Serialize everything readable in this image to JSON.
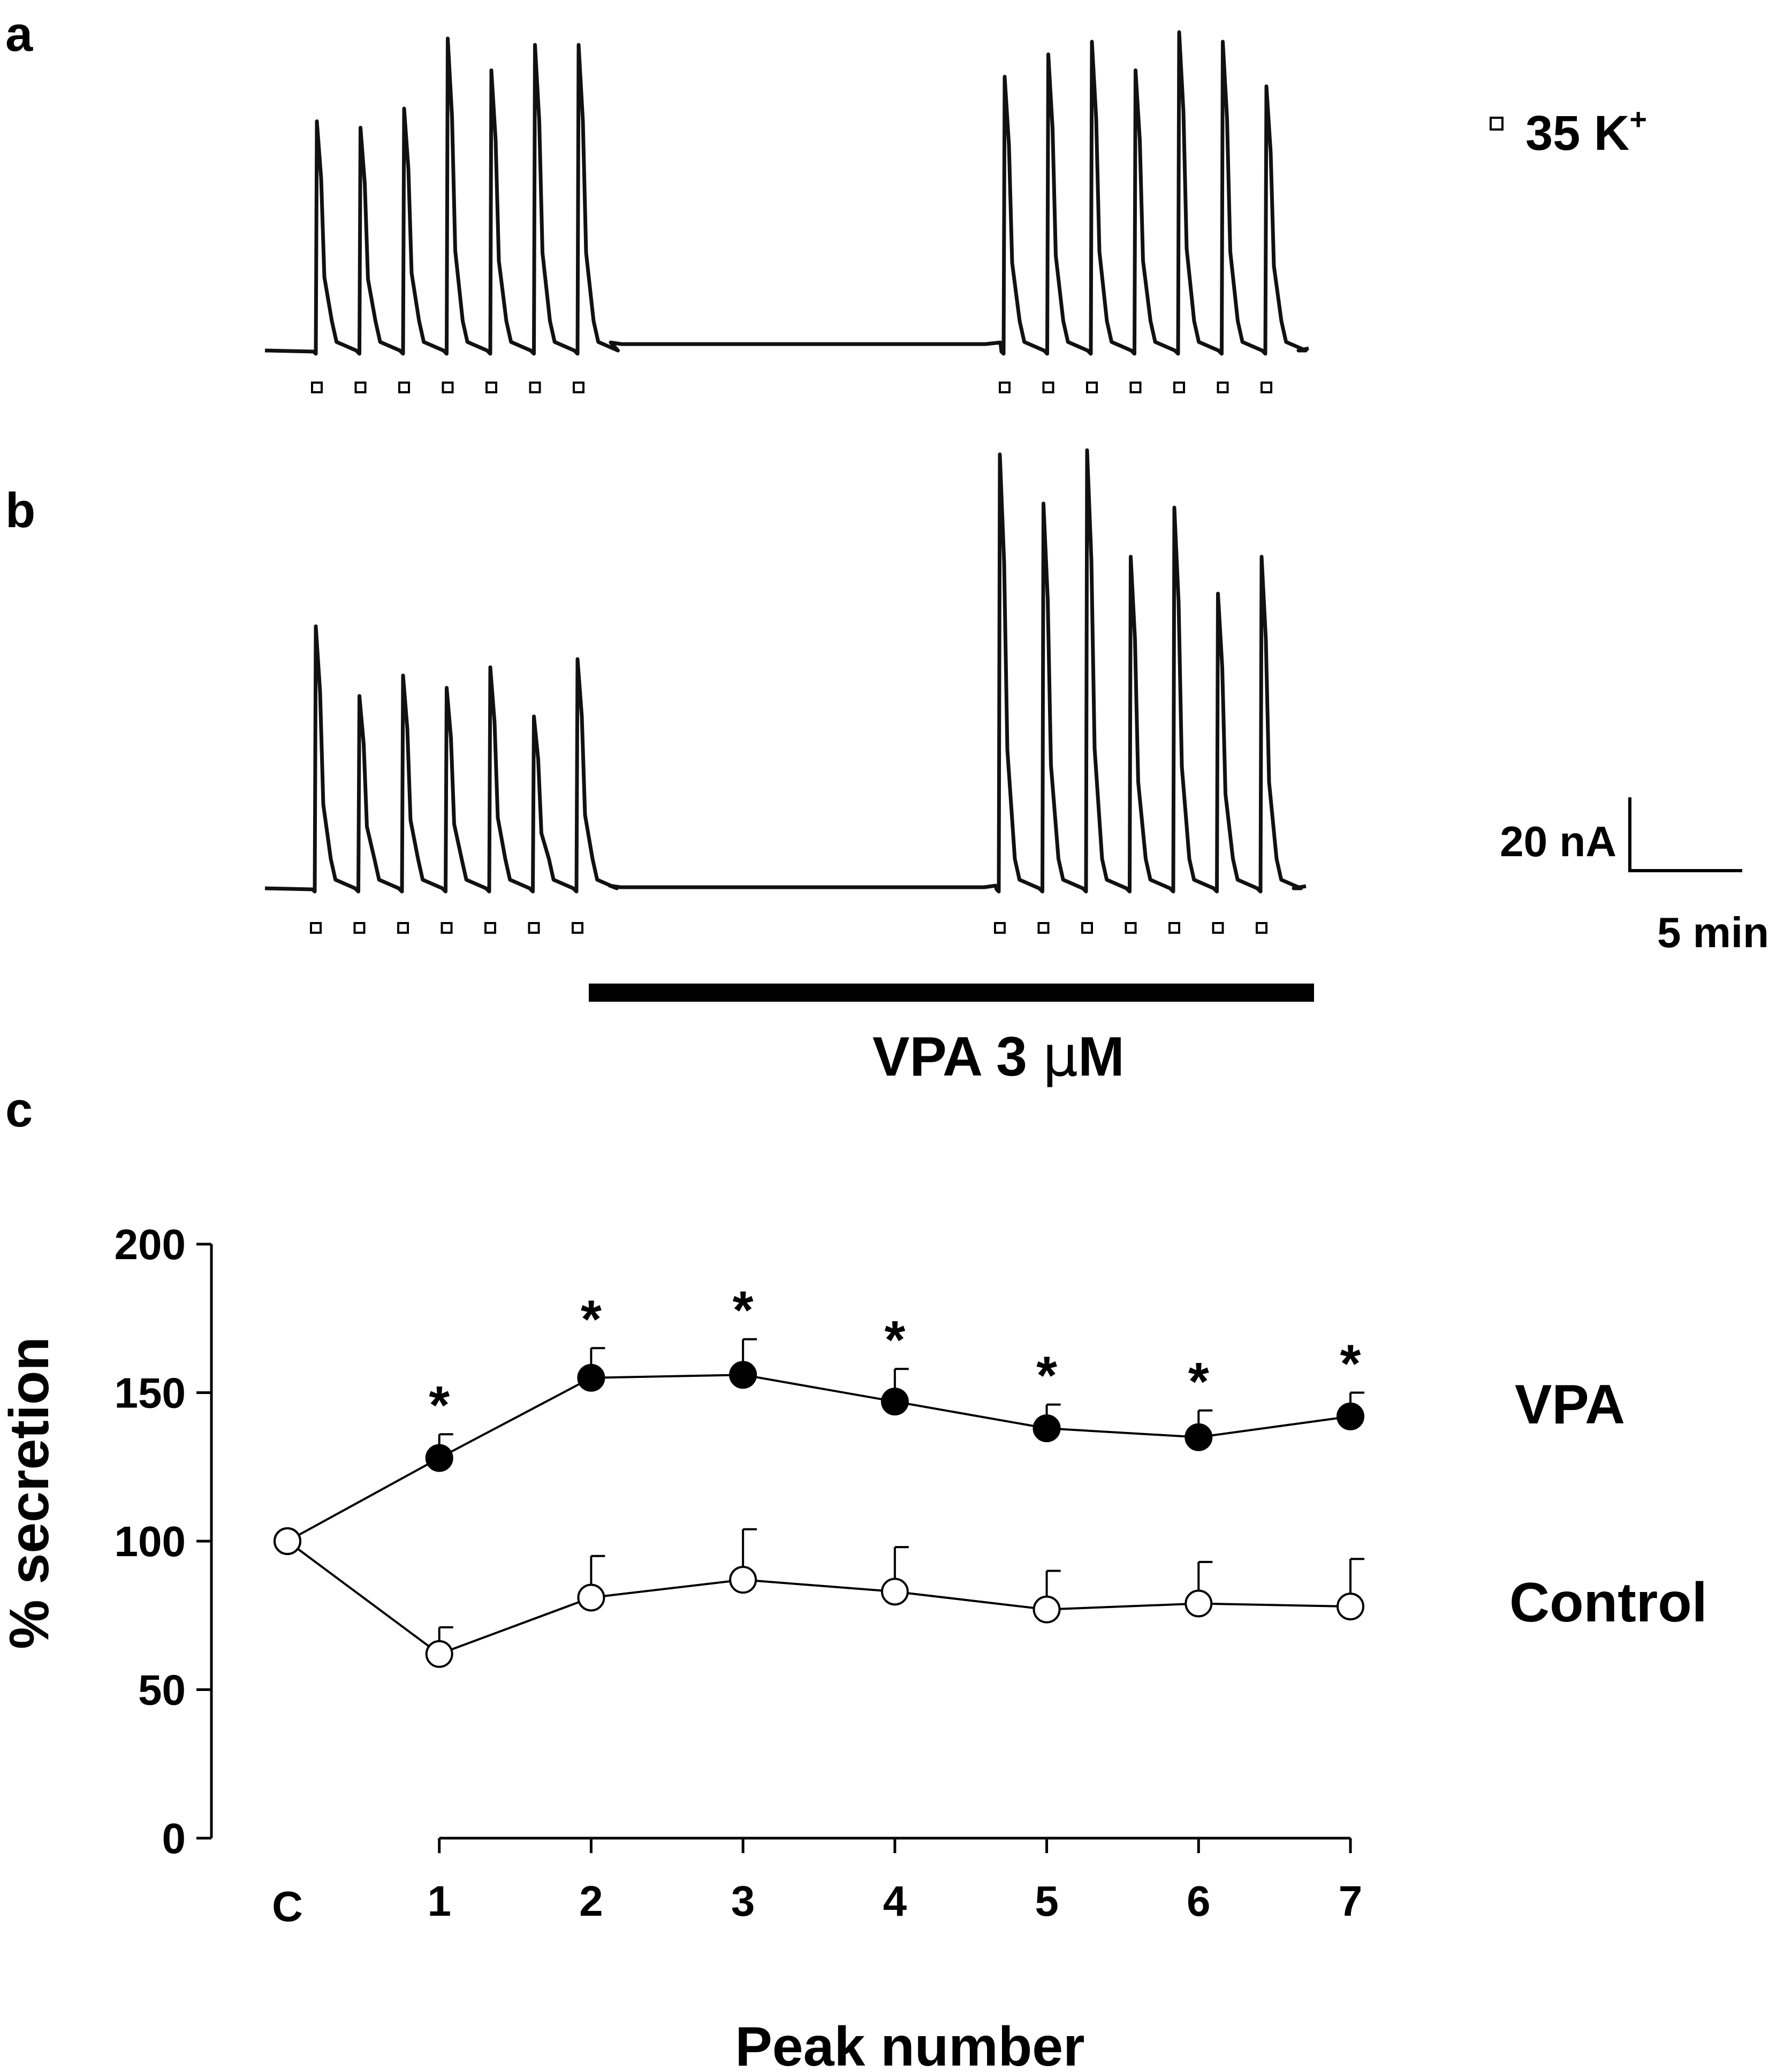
{
  "panels": {
    "a": {
      "label": "a"
    },
    "b": {
      "label": "b"
    },
    "c": {
      "label": "c"
    }
  },
  "legend": {
    "stimulus_prefix": "35 K",
    "stimulus_superscript": "+"
  },
  "scale_bar": {
    "current_label": "20 nA",
    "time_label": "5 min"
  },
  "treatment_bar": {
    "label_prefix": "VPA 3 ",
    "label_unit_mu": "μ",
    "label_unit_rest": "M"
  },
  "traces": {
    "a": {
      "peak_heights_pre": [
        0.72,
        0.7,
        0.76,
        0.98,
        0.88,
        0.96,
        0.96
      ],
      "peak_heights_post": [
        0.86,
        0.93,
        0.97,
        0.88,
        1.0,
        0.97,
        0.83
      ]
    },
    "b": {
      "peak_heights_pre": [
        0.64,
        0.47,
        0.52,
        0.49,
        0.54,
        0.42,
        0.56
      ],
      "peak_heights_post": [
        1.06,
        0.94,
        1.07,
        0.81,
        0.93,
        0.72,
        0.81
      ]
    }
  },
  "chart_data": {
    "type": "line",
    "title": "",
    "xlabel": "Peak number",
    "ylabel": "% secretion",
    "categories": [
      "C",
      "1",
      "2",
      "3",
      "4",
      "5",
      "6",
      "7"
    ],
    "ylim": [
      0,
      200
    ],
    "yticks": [
      0,
      50,
      100,
      150,
      200
    ],
    "series": [
      {
        "name": "VPA",
        "marker": "filled-circle",
        "values": [
          100,
          128,
          155,
          156,
          147,
          138,
          135,
          142
        ],
        "errors": [
          0,
          8,
          10,
          12,
          11,
          8,
          9,
          8
        ],
        "significance": [
          "",
          "*",
          "*",
          "*",
          "*",
          "*",
          "*",
          "*"
        ]
      },
      {
        "name": "Control",
        "marker": "open-circle",
        "values": [
          100,
          62,
          81,
          87,
          83,
          77,
          79,
          78
        ],
        "errors": [
          0,
          9,
          14,
          17,
          15,
          13,
          14,
          16
        ],
        "significance": [
          "",
          "",
          "",
          "",
          "",
          "",
          "",
          ""
        ]
      }
    ],
    "grid": false,
    "legend_placement": "right"
  }
}
